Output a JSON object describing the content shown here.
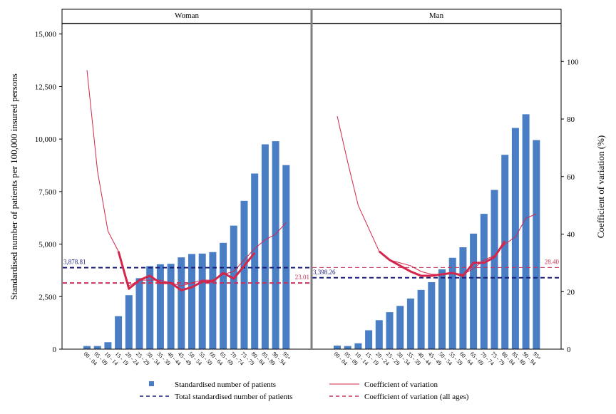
{
  "chart_data": {
    "type": "bar",
    "ylabel_left": "Standardised number of patients per 100,000 insured persons",
    "ylabel_right": "Coefficient of variation (%)",
    "ylim_left": [
      0,
      15500
    ],
    "ylim_right": [
      0,
      113.2
    ],
    "yticks_left": [
      0,
      2500,
      5000,
      7500,
      10000,
      12500,
      15000
    ],
    "yticks_left_labels": [
      "0",
      "2,500",
      "5,000",
      "7,500",
      "10,000",
      "12,500",
      "15,000"
    ],
    "yticks_right": [
      0,
      20,
      40,
      60,
      80,
      100
    ],
    "yticks_right_labels": [
      "0",
      "20",
      "40",
      "60",
      "80",
      "100"
    ],
    "categories": [
      "00 - 04",
      "05 - 09",
      "10 - 14",
      "15 - 19",
      "20 - 24",
      "25 - 29",
      "30 - 34",
      "35 - 39",
      "40 - 44",
      "45 - 49",
      "50 - 54",
      "55 - 59",
      "60 - 64",
      "65 - 69",
      "70 - 74",
      "75 - 79",
      "80 - 84",
      "85 - 89",
      "90 - 94",
      "95+"
    ],
    "panels": [
      {
        "title": "Woman",
        "bars": [
          150,
          150,
          330,
          1570,
          2570,
          3380,
          3950,
          4040,
          4060,
          4370,
          4530,
          4550,
          4620,
          5060,
          5880,
          7060,
          8360,
          9750,
          9900,
          8760
        ],
        "cv_thin": [
          97,
          62,
          41,
          34,
          22,
          24,
          24,
          24,
          23,
          22,
          23,
          24,
          24,
          26,
          27,
          31,
          35,
          38,
          40,
          44
        ],
        "cv_thick": [
          null,
          null,
          null,
          34,
          21,
          24,
          25.5,
          23,
          23,
          20.5,
          21.5,
          23.5,
          23.5,
          26.5,
          24.5,
          29,
          33.5,
          null,
          null,
          null
        ],
        "total_line": 3878.81,
        "total_label": "3,878.81",
        "cv_all": 23.01,
        "cv_all_label": "23.01"
      },
      {
        "title": "Man",
        "bars": [
          170,
          150,
          280,
          900,
          1380,
          1760,
          2060,
          2410,
          2820,
          3190,
          3800,
          4350,
          4850,
          5500,
          6440,
          7580,
          9250,
          10530,
          11180,
          9950
        ],
        "cv_thin": [
          81,
          65,
          50,
          42,
          34,
          31,
          30,
          29,
          27,
          26,
          26,
          26.5,
          26,
          28,
          31,
          32.5,
          36.5,
          39,
          45.5,
          47
        ],
        "cv_thick": [
          null,
          null,
          null,
          null,
          34,
          31,
          29,
          27,
          25.5,
          25.5,
          26,
          26.5,
          25.5,
          30,
          30,
          32,
          37.5,
          null,
          null,
          null
        ],
        "total_line": 3398.26,
        "total_label": "3,398.26",
        "cv_all": 28.4,
        "cv_all_label": "28.40"
      }
    ],
    "colors": {
      "bar": "#4a7ec4",
      "cv": "#d3264a",
      "total": "#1c1c7a",
      "cv_all": "#c8305a"
    },
    "legend": {
      "bars": "Standardised number of patients",
      "cv": "Coefficient of variation",
      "total": "Total standardised number of patients",
      "cv_all": "Coefficient of variation (all ages)"
    }
  }
}
